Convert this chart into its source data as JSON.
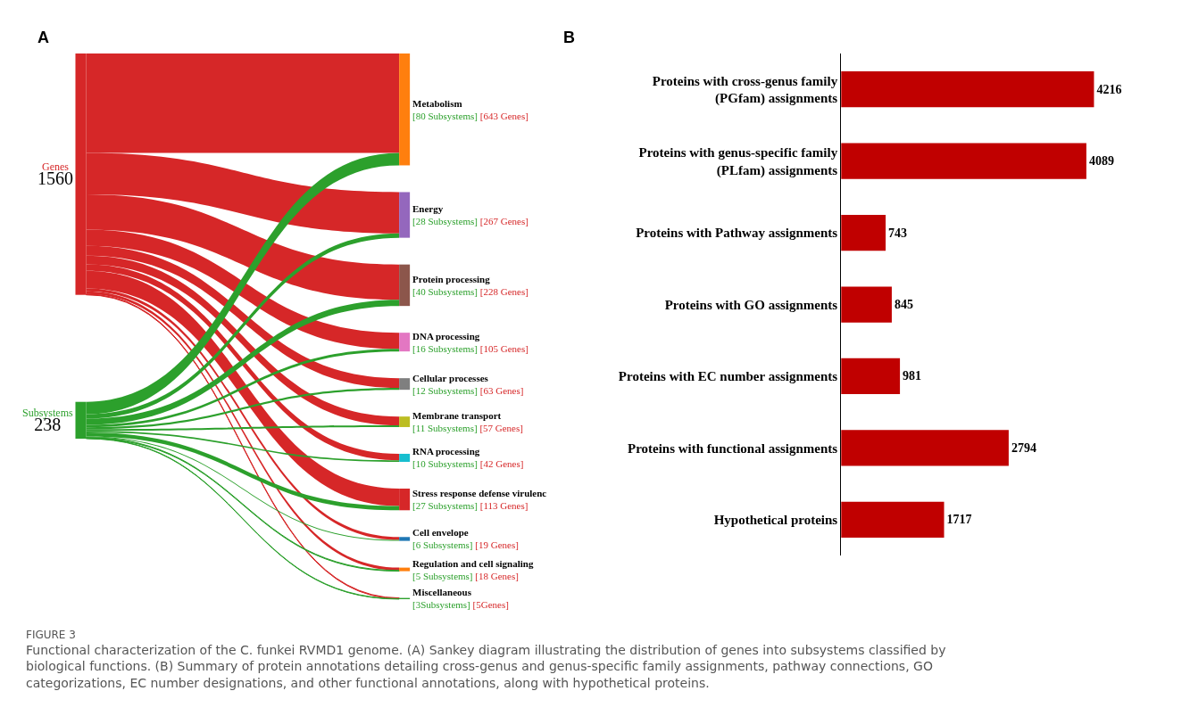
{
  "chart_data": [
    {
      "type": "other",
      "title": "A",
      "categories": [
        "Metabolism",
        "Energy",
        "Protein processing",
        "DNA processing",
        "Cellular processes",
        "Membrane transport",
        "RNA processing",
        "Stress response defense virulenc",
        "Cell envelope",
        "Regulation and cell signaling",
        "Miscellaneous"
      ],
      "colors": [
        "#ff7f0e",
        "#9467bd",
        "#8c564b",
        "#e377c2",
        "#7f7f7f",
        "#bcbd22",
        "#17becf",
        "#d62728",
        "#1f77b4",
        "#ff7f0e",
        "#2ca02c"
      ],
      "series": [
        {
          "name": "Genes",
          "color": "#d62728",
          "values": [
            643,
            267,
            228,
            105,
            63,
            57,
            42,
            113,
            19,
            18,
            5
          ],
          "value_labels": [
            "[643 Genes]",
            "[267 Genes]",
            "[228 Genes]",
            "[105 Genes]",
            "[63 Genes]",
            "[57 Genes]",
            "[42 Genes]",
            "[113 Genes]",
            "[19 Genes]",
            "[18 Genes]",
            "[5Genes]"
          ]
        },
        {
          "name": "Subsystems",
          "color": "#2ca02c",
          "values": [
            80,
            28,
            40,
            16,
            12,
            11,
            10,
            27,
            6,
            5,
            3
          ],
          "value_labels": [
            "[80 Subsystems]",
            "[28 Subsystems]",
            "[40 Subsystems]",
            "[16 Subsystems]",
            "[12 Subsystems]",
            "[11 Subsystems]",
            "[10 Subsystems]",
            "[27 Subsystems]",
            "[6 Subsystems]",
            "[5 Subsystems]",
            "[3Subsystems]"
          ]
        }
      ],
      "totals": [
        "1560",
        "238"
      ],
      "annotations": [
        "FIGURE 3",
        "Functional characterization of the C. funkei RVMD1 genome. (A) Sankey diagram illustrating the distribution of genes into subsystems classified by biological functions. (B) Summary of protein annotations detailing cross-genus and genus-specific family assignments, pathway connections, GO categorizations, EC number designations, and other functional annotations, along with hypothetical proteins."
      ]
    },
    {
      "type": "bar",
      "title": "B",
      "orientation": "horizontal",
      "categories": [
        "Proteins with cross-genus family (PGfam) assignments",
        "Proteins with genus-specific family (PLfam) assignments",
        "Proteins with Pathway assignments",
        "Proteins with GO assignments",
        "Proteins with EC number assignments",
        "Proteins with functional assignments",
        "Hypothetical proteins"
      ],
      "values": [
        4216,
        4089,
        743,
        845,
        981,
        2794,
        1717
      ],
      "color": "#c00000",
      "data_labels": true
    }
  ]
}
